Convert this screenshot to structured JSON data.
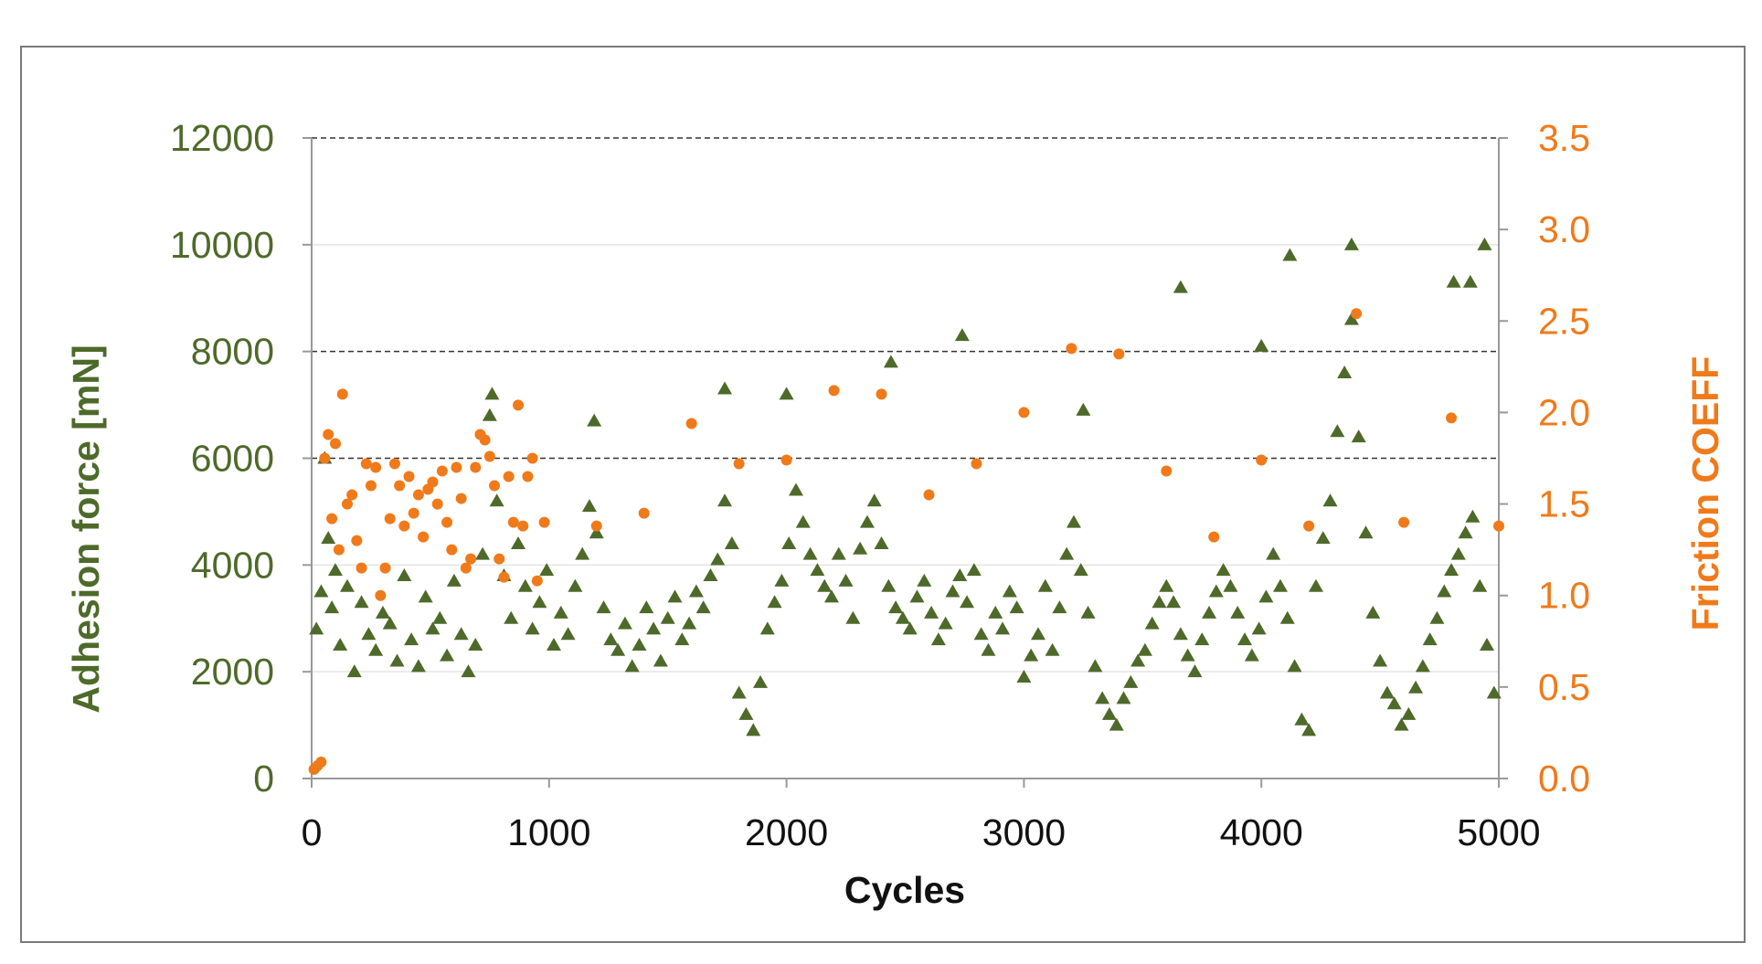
{
  "chart_data": {
    "type": "scatter",
    "title": "",
    "xlabel": "Cycles",
    "ylabel": "Adhesion force [mN]",
    "y2label": "Friction COEFF",
    "xlim": [
      0,
      5000
    ],
    "ylim": [
      0,
      12000
    ],
    "y2lim": [
      0,
      3.5
    ],
    "x_ticks": [
      "0",
      "1000",
      "2000",
      "3000",
      "4000",
      "5000"
    ],
    "y_ticks": [
      "0",
      "2000",
      "4000",
      "6000",
      "8000",
      "10000",
      "12000"
    ],
    "y2_ticks": [
      "0.0",
      "0.5",
      "1.0",
      "1.5",
      "2.0",
      "2.5",
      "3.0",
      "3.5"
    ],
    "y_tick_values": [
      0,
      2000,
      4000,
      6000,
      8000,
      10000,
      12000
    ],
    "y2_tick_values": [
      0,
      0.5,
      1.0,
      1.5,
      2.0,
      2.5,
      3.0,
      3.5
    ],
    "x_tick_values": [
      0,
      1000,
      2000,
      3000,
      4000,
      5000
    ],
    "gridlines_y": [
      6000,
      8000,
      12000
    ],
    "colors": {
      "adhesion": "#4e6a2a",
      "friction": "#f07a1a",
      "axis_text": "#111111"
    },
    "series": [
      {
        "name": "Adhesion force",
        "axis": "left",
        "marker": "triangle",
        "x": [
          20,
          40,
          55,
          70,
          85,
          100,
          120,
          150,
          180,
          210,
          240,
          270,
          300,
          330,
          360,
          390,
          420,
          450,
          480,
          510,
          540,
          570,
          600,
          630,
          660,
          690,
          720,
          750,
          780,
          810,
          840,
          870,
          900,
          930,
          960,
          990,
          1020,
          1050,
          1080,
          1110,
          1140,
          1170,
          1200,
          1230,
          1260,
          1290,
          1320,
          1350,
          1380,
          1410,
          1440,
          1470,
          1500,
          1530,
          1560,
          1590,
          1620,
          1650,
          1680,
          1710,
          1740,
          1770,
          1800,
          1830,
          1860,
          1890,
          1920,
          1950,
          1980,
          2010,
          2040,
          2070,
          2100,
          2130,
          2160,
          2190,
          2220,
          2250,
          2280,
          2310,
          2340,
          2370,
          2400,
          2430,
          2460,
          2490,
          2520,
          2550,
          2580,
          2610,
          2640,
          2670,
          2700,
          2730,
          2760,
          2790,
          2820,
          2850,
          2880,
          2910,
          2940,
          2970,
          3000,
          3030,
          3060,
          3090,
          3120,
          3150,
          3180,
          3210,
          3240,
          3270,
          3300,
          3330,
          3360,
          3390,
          3420,
          3450,
          3480,
          3510,
          3540,
          3570,
          3600,
          3630,
          3660,
          3690,
          3720,
          3750,
          3780,
          3810,
          3840,
          3870,
          3900,
          3930,
          3960,
          3990,
          4020,
          4050,
          4080,
          4110,
          4140,
          4170,
          4200,
          4230,
          4260,
          4290,
          4320,
          4350,
          4380,
          4410,
          4440,
          4470,
          4500,
          4530,
          4560,
          4590,
          4620,
          4650,
          4680,
          4710,
          4740,
          4770,
          4800,
          4830,
          4860,
          4890,
          4920,
          4950,
          4980,
          760,
          1740,
          2000,
          2740,
          3660,
          4120,
          4380,
          4940,
          4880,
          4810,
          1190,
          2440,
          3250,
          4000
        ],
        "y": [
          2800,
          3500,
          6000,
          4500,
          3200,
          3900,
          2500,
          3600,
          2000,
          3300,
          2700,
          2400,
          3100,
          2900,
          2200,
          3800,
          2600,
          2100,
          3400,
          2800,
          3000,
          2300,
          3700,
          2700,
          2000,
          2500,
          4200,
          6800,
          5200,
          3800,
          3000,
          4400,
          3600,
          2800,
          3300,
          3900,
          2500,
          3100,
          2700,
          3600,
          4200,
          5100,
          4600,
          3200,
          2600,
          2400,
          2900,
          2100,
          2500,
          3200,
          2800,
          2200,
          3000,
          3400,
          2600,
          2900,
          3500,
          3200,
          3800,
          4100,
          5200,
          4400,
          1600,
          1200,
          900,
          1800,
          2800,
          3300,
          3700,
          4400,
          5400,
          4800,
          4200,
          3900,
          3600,
          3400,
          4200,
          3700,
          3000,
          4300,
          4800,
          5200,
          4400,
          3600,
          3200,
          3000,
          2800,
          3400,
          3700,
          3100,
          2600,
          2900,
          3500,
          3800,
          3300,
          3900,
          2700,
          2400,
          3100,
          2800,
          3500,
          3200,
          1900,
          2300,
          2700,
          3600,
          2400,
          3200,
          4200,
          4800,
          3900,
          3100,
          2100,
          1500,
          1200,
          1000,
          1500,
          1800,
          2200,
          2400,
          2900,
          3300,
          3600,
          3300,
          2700,
          2300,
          2000,
          2600,
          3100,
          3500,
          3900,
          3600,
          3100,
          2600,
          2300,
          2800,
          3400,
          4200,
          3600,
          3000,
          2100,
          1100,
          900,
          3600,
          4500,
          5200,
          6500,
          7600,
          8600,
          6400,
          4600,
          3100,
          2200,
          1600,
          1400,
          1000,
          1200,
          1700,
          2100,
          2600,
          3000,
          3500,
          3900,
          4200,
          4600,
          4900,
          3600,
          2500,
          1600,
          7200,
          7300,
          7200,
          8300,
          9200,
          9800,
          10000,
          10000,
          9300,
          9300,
          6700,
          7800,
          6900,
          8100
        ]
      },
      {
        "name": "Friction COEFF",
        "axis": "right",
        "marker": "circle",
        "x": [
          10,
          25,
          40,
          55,
          70,
          85,
          100,
          115,
          130,
          150,
          170,
          190,
          210,
          230,
          250,
          270,
          290,
          310,
          330,
          350,
          370,
          390,
          410,
          430,
          450,
          470,
          490,
          510,
          530,
          550,
          570,
          590,
          610,
          630,
          650,
          670,
          690,
          710,
          730,
          750,
          770,
          790,
          810,
          830,
          850,
          870,
          890,
          910,
          930,
          950,
          980,
          1200,
          1400,
          1600,
          1800,
          2000,
          2200,
          2400,
          2600,
          2800,
          3000,
          3200,
          3400,
          3600,
          3800,
          4000,
          4200,
          4400,
          4600,
          4800,
          5000
        ],
        "y": [
          0.05,
          0.07,
          0.09,
          1.75,
          1.88,
          1.42,
          1.83,
          1.25,
          2.1,
          1.5,
          1.55,
          1.3,
          1.15,
          1.72,
          1.6,
          1.7,
          1.0,
          1.15,
          1.42,
          1.72,
          1.6,
          1.38,
          1.65,
          1.45,
          1.55,
          1.32,
          1.58,
          1.62,
          1.5,
          1.68,
          1.4,
          1.25,
          1.7,
          1.53,
          1.15,
          1.2,
          1.7,
          1.88,
          1.85,
          1.76,
          1.6,
          1.2,
          1.1,
          1.65,
          1.4,
          2.04,
          1.38,
          1.65,
          1.75,
          1.08,
          1.4,
          1.38,
          1.45,
          1.94,
          1.72,
          1.74,
          2.12,
          2.1,
          1.55,
          1.72,
          2.0,
          2.35,
          2.32,
          1.68,
          1.32,
          1.74,
          1.38,
          2.54,
          1.4,
          1.97,
          1.38
        ]
      }
    ]
  }
}
